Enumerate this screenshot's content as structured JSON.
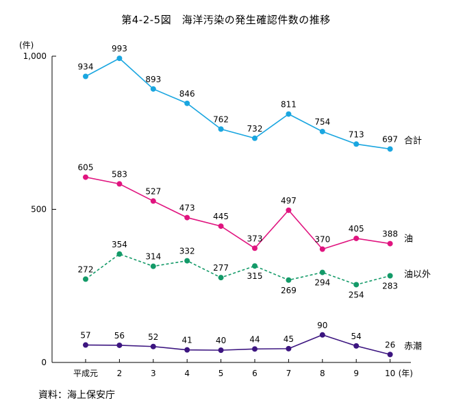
{
  "title": "第4-2-5図　海洋汚染の発生確認件数の推移",
  "source": "資料：海上保安庁",
  "chart_data": {
    "type": "line",
    "title": "第4-2-5図　海洋汚染の発生確認件数の推移",
    "y_unit_label": "(件)",
    "x_unit_label": "(年)",
    "categories": [
      "平成元",
      "2",
      "3",
      "4",
      "5",
      "6",
      "7",
      "8",
      "9",
      "10"
    ],
    "ylim": [
      0,
      1000
    ],
    "yticks": [
      {
        "value": 0,
        "label": "0"
      },
      {
        "value": 500,
        "label": "500"
      },
      {
        "value": 1000,
        "label": "1,000"
      }
    ],
    "grid": false,
    "series": [
      {
        "name": "合計",
        "color": "#1aa6e0",
        "style": "solid",
        "values": [
          934,
          993,
          893,
          846,
          762,
          732,
          811,
          754,
          713,
          697
        ],
        "label_pos": [
          "above",
          "above",
          "above",
          "above",
          "above",
          "above",
          "above",
          "above",
          "above",
          "above"
        ]
      },
      {
        "name": "油",
        "color": "#e0147f",
        "style": "solid",
        "values": [
          605,
          583,
          527,
          473,
          445,
          373,
          497,
          370,
          405,
          388
        ],
        "label_pos": [
          "above",
          "above",
          "above",
          "above",
          "above",
          "above",
          "above",
          "above",
          "above",
          "above"
        ]
      },
      {
        "name": "油以外",
        "color": "#139a68",
        "style": "dashed",
        "values": [
          272,
          354,
          314,
          332,
          277,
          315,
          269,
          294,
          254,
          283
        ],
        "label_pos": [
          "above",
          "above",
          "above",
          "above",
          "above",
          "below",
          "below",
          "below",
          "below",
          "below"
        ]
      },
      {
        "name": "赤潮",
        "color": "#3c1580",
        "style": "solid",
        "values": [
          57,
          56,
          52,
          41,
          40,
          44,
          45,
          90,
          54,
          26
        ],
        "label_pos": [
          "above",
          "above",
          "above",
          "above",
          "above",
          "above",
          "above",
          "above",
          "above",
          "above"
        ]
      }
    ]
  }
}
